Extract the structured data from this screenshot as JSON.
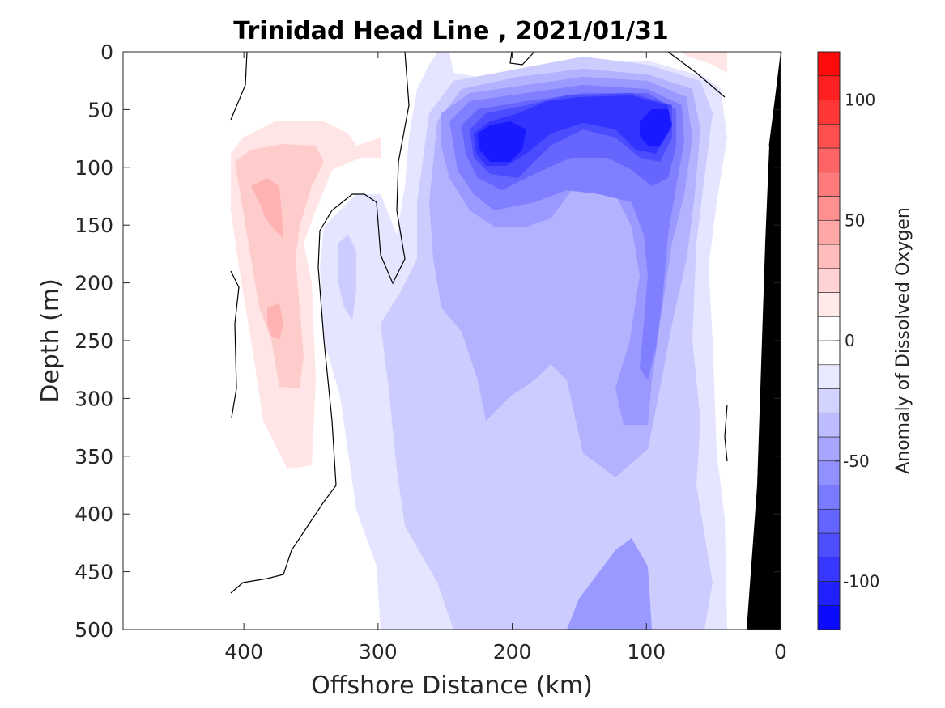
{
  "chart_data": {
    "type": "heatmap",
    "title": "Trinidad Head Line , 2021/01/31",
    "xlabel": "Offshore Distance (km)",
    "ylabel": "Depth (m)",
    "xlim": [
      490,
      0
    ],
    "ylim": [
      0,
      500
    ],
    "x_reversed": true,
    "y_reversed": true,
    "xticks": [
      400,
      300,
      200,
      100,
      0
    ],
    "yticks": [
      0,
      50,
      100,
      150,
      200,
      250,
      300,
      350,
      400,
      450,
      500
    ],
    "colorbar": {
      "label": "Anomaly of Dissolved Oxygen",
      "range": [
        -120,
        120
      ],
      "level_step": 10,
      "ticks": [
        100,
        50,
        0,
        -50,
        -100
      ],
      "color_positive": "#ff0000",
      "color_negative": "#0000ff",
      "color_zero": "#ffffff"
    },
    "zero_contour_color": "#000000",
    "bathymetry_color": "#000000",
    "data_extent_km": [
      410,
      40
    ],
    "features": [
      {
        "name": "Deep oxygen minimum core near 210 km",
        "x_km": 212,
        "depth_m": 80,
        "anomaly": -100
      },
      {
        "name": "Deep oxygen minimum core near 85 km",
        "x_km": 88,
        "depth_m": 68,
        "anomaly": -100
      },
      {
        "name": "Negative anomaly near 160 km",
        "x_km": 160,
        "depth_m": 60,
        "anomaly": -80
      },
      {
        "name": "Positive anomaly lobe",
        "x_km": 370,
        "depth_m": 120,
        "anomaly": 30
      },
      {
        "name": "Positive anomaly lobe deep",
        "x_km": 372,
        "depth_m": 240,
        "anomaly": 30
      }
    ]
  }
}
